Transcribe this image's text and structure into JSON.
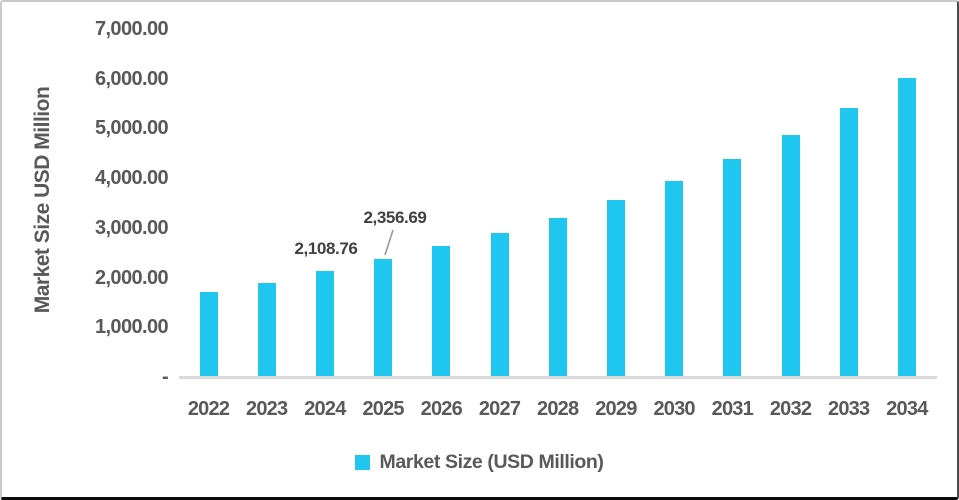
{
  "chart_data": {
    "type": "bar",
    "title": "",
    "xlabel": "",
    "ylabel": "Market Size USD Million",
    "categories": [
      "2022",
      "2023",
      "2024",
      "2025",
      "2026",
      "2027",
      "2028",
      "2029",
      "2030",
      "2031",
      "2032",
      "2033",
      "2034"
    ],
    "values": [
      1680,
      1880,
      2108.76,
      2356.69,
      2620,
      2880,
      3180,
      3540,
      3930,
      4370,
      4850,
      5400,
      6000
    ],
    "ylim": [
      0,
      7000
    ],
    "ytick_interval": 1000,
    "ytick_labels": [
      "-",
      "1,000.00",
      "2,000.00",
      "3,000.00",
      "4,000.00",
      "5,000.00",
      "6,000.00",
      "7,000.00"
    ],
    "grid": false,
    "legend_position": "bottom",
    "data_labels": {
      "label_2024": "2,108.76",
      "label_2025": "2,356.69"
    },
    "legend": {
      "label": "Market Size (USD Million)"
    },
    "colors": {
      "bar": "#1FC7F0",
      "axis_line": "#D9D9D9",
      "tick_text": "#595959",
      "data_label_text": "#404040",
      "leader_line": "#9A9A9A"
    }
  }
}
